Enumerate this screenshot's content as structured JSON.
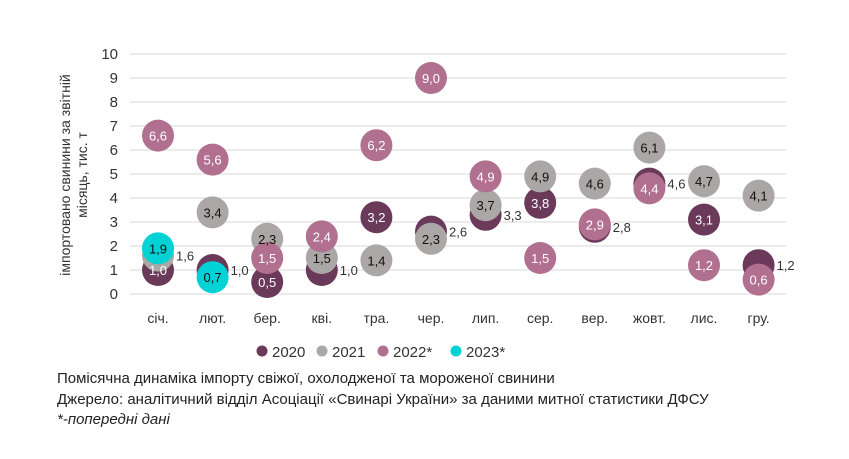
{
  "chart_data": {
    "type": "scatter",
    "ylabel": "імпортовано свинини за звітній місяць, тис. т",
    "ylim": [
      0,
      10
    ],
    "yticks": [
      0,
      1,
      2,
      3,
      4,
      5,
      6,
      7,
      8,
      9,
      10
    ],
    "grid": true,
    "legend_position": "bottom",
    "categories": [
      "січ.",
      "лют.",
      "бер.",
      "кві.",
      "тра.",
      "чер.",
      "лип.",
      "сер.",
      "вер.",
      "жовт.",
      "лис.",
      "гру."
    ],
    "series": [
      {
        "name": "2020",
        "color": "#6b3a5a",
        "label_color": "#ffffff",
        "values": [
          1.0,
          1.0,
          0.5,
          1.0,
          3.2,
          2.6,
          3.3,
          3.8,
          2.8,
          4.6,
          3.1,
          1.2
        ]
      },
      {
        "name": "2021",
        "color": "#aba7a6",
        "label_color": "#111111",
        "values": [
          1.6,
          3.4,
          2.3,
          1.5,
          1.4,
          2.3,
          3.7,
          4.9,
          4.6,
          6.1,
          4.7,
          4.1
        ]
      },
      {
        "name": "2022*",
        "color": "#b1708f",
        "label_color": "#ffffff",
        "values": [
          6.6,
          5.6,
          1.5,
          2.4,
          6.2,
          9.0,
          4.9,
          1.5,
          2.9,
          4.4,
          1.2,
          0.6
        ]
      },
      {
        "name": "2023*",
        "color": "#00d2d6",
        "label_color": "#111111",
        "values": [
          1.9,
          0.7,
          null,
          null,
          null,
          null,
          null,
          null,
          null,
          null,
          null,
          null
        ]
      }
    ]
  },
  "captions": {
    "line1": "Помісячна динаміка імпорту свіжої, охолодженої та мороженої свинини",
    "line2": "Джерело: аналітичний відділ Асоціації «Свинарі України» за даними митної статистики ДФСУ",
    "line3": "*-попередні дані"
  }
}
